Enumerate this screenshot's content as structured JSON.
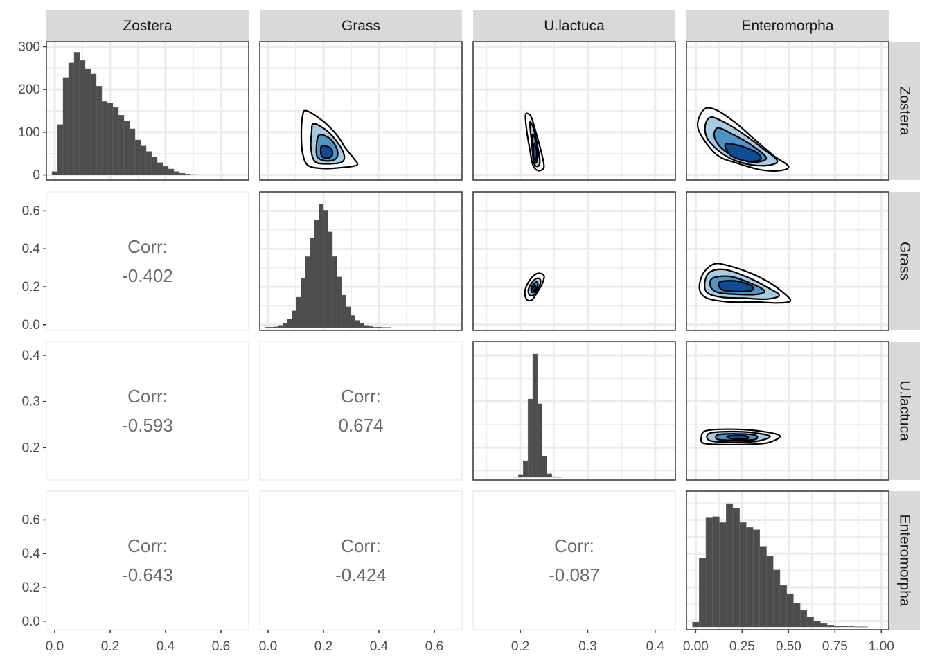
{
  "chart_data": {
    "type": "scatterplot-matrix",
    "variables": [
      "Zostera",
      "Grass",
      "U.lactuca",
      "Enteromorpha"
    ],
    "x_axis": [
      {
        "range": [
          -0.03,
          0.7
        ],
        "ticks": [
          0.0,
          0.2,
          0.4,
          0.6
        ],
        "tick_labels": [
          "0.0",
          "0.2",
          "0.4",
          "0.6"
        ]
      },
      {
        "range": [
          -0.03,
          0.7
        ],
        "ticks": [
          0.0,
          0.2,
          0.4,
          0.6
        ],
        "tick_labels": [
          "0.0",
          "0.2",
          "0.4",
          "0.6"
        ]
      },
      {
        "range": [
          0.13,
          0.43
        ],
        "ticks": [
          0.2,
          0.3,
          0.4
        ],
        "tick_labels": [
          "0.2",
          "0.3",
          "0.4"
        ]
      },
      {
        "range": [
          -0.05,
          1.04
        ],
        "ticks": [
          0.0,
          0.25,
          0.5,
          0.75,
          1.0
        ],
        "tick_labels": [
          "0.00",
          "0.25",
          "0.50",
          "0.75",
          "1.00"
        ]
      }
    ],
    "y_axis": [
      {
        "range": [
          -12,
          312
        ],
        "ticks": [
          0,
          100,
          200,
          300
        ],
        "tick_labels": [
          "0",
          "100",
          "200",
          "300"
        ]
      },
      {
        "range": [
          -0.03,
          0.7
        ],
        "ticks": [
          0.0,
          0.2,
          0.4,
          0.6
        ],
        "tick_labels": [
          "0.0",
          "0.2",
          "0.4",
          "0.6"
        ]
      },
      {
        "range": [
          0.13,
          0.43
        ],
        "ticks": [
          0.2,
          0.3,
          0.4
        ],
        "tick_labels": [
          "0.2",
          "0.3",
          "0.4"
        ]
      },
      {
        "range": [
          -0.05,
          0.77
        ],
        "ticks": [
          0.0,
          0.2,
          0.4,
          0.6
        ],
        "tick_labels": [
          "0.0",
          "0.2",
          "0.4",
          "0.6"
        ]
      }
    ],
    "histograms": [
      {
        "variable": "Zostera",
        "bin_width": 0.02,
        "x_start": -0.01,
        "counts": [
          8,
          118,
          228,
          262,
          287,
          268,
          248,
          236,
          208,
          172,
          168,
          158,
          140,
          126,
          108,
          82,
          68,
          55,
          42,
          29,
          20,
          14,
          8,
          4,
          2,
          1,
          0,
          0,
          0,
          0
        ]
      },
      {
        "variable": "Grass",
        "bin_width": 0.0163,
        "x_start": -0.012,
        "counts": [
          2,
          2,
          3,
          8,
          16,
          30,
          58,
          105,
          170,
          245,
          310,
          372,
          425,
          405,
          330,
          245,
          175,
          112,
          72,
          42,
          25,
          15,
          8,
          4,
          2,
          2,
          1,
          1,
          0,
          0
        ],
        "y_max_scale": 425
      },
      {
        "variable": "U.lactuca",
        "bin_width": 0.0071,
        "x_start": 0.19,
        "counts": [
          2,
          12,
          70,
          330,
          520,
          310,
          90,
          15,
          3,
          1,
          0,
          0,
          0,
          0,
          0,
          0,
          0,
          0,
          0,
          0,
          0,
          0,
          0,
          0,
          0,
          0,
          0,
          0,
          0,
          0
        ],
        "y_max_scale": 520
      },
      {
        "variable": "Enteromorpha",
        "bin_width": 0.0363,
        "x_start": -0.018,
        "counts": [
          20,
          290,
          460,
          465,
          440,
          520,
          500,
          440,
          420,
          410,
          340,
          300,
          240,
          175,
          140,
          100,
          70,
          42,
          25,
          14,
          8,
          4,
          3,
          2,
          1,
          1,
          0,
          0,
          0,
          0
        ],
        "y_max_scale": 520
      }
    ],
    "correlations": [
      {
        "row": "Grass",
        "col": "Zostera",
        "label": "Corr:",
        "value": "-0.402"
      },
      {
        "row": "U.lactuca",
        "col": "Zostera",
        "label": "Corr:",
        "value": "-0.593"
      },
      {
        "row": "U.lactuca",
        "col": "Grass",
        "label": "Corr:",
        "value": "0.674"
      },
      {
        "row": "Enteromorpha",
        "col": "Zostera",
        "label": "Corr:",
        "value": "-0.643"
      },
      {
        "row": "Enteromorpha",
        "col": "Grass",
        "label": "Corr:",
        "value": "-0.424"
      },
      {
        "row": "Enteromorpha",
        "col": "U.lactuca",
        "label": "Corr:",
        "value": "-0.087"
      }
    ],
    "density_contours": [
      {
        "row": "Zostera",
        "col": "Grass",
        "x_var": "Grass",
        "y_var": "Zostera",
        "polygons": [
          [
            [
              0.14,
              150
            ],
            [
              0.2,
              125
            ],
            [
              0.25,
              92
            ],
            [
              0.28,
              62
            ],
            [
              0.31,
              38
            ],
            [
              0.32,
              23
            ],
            [
              0.26,
              17
            ],
            [
              0.2,
              15
            ],
            [
              0.145,
              22
            ],
            [
              0.125,
              50
            ],
            [
              0.12,
              95
            ],
            [
              0.125,
              140
            ]
          ],
          [
            [
              0.165,
              120
            ],
            [
              0.215,
              102
            ],
            [
              0.255,
              72
            ],
            [
              0.275,
              45
            ],
            [
              0.265,
              30
            ],
            [
              0.215,
              26
            ],
            [
              0.17,
              31
            ],
            [
              0.155,
              60
            ],
            [
              0.157,
              98
            ]
          ],
          [
            [
              0.185,
              94
            ],
            [
              0.225,
              84
            ],
            [
              0.25,
              58
            ],
            [
              0.245,
              38
            ],
            [
              0.21,
              33
            ],
            [
              0.178,
              42
            ],
            [
              0.175,
              70
            ]
          ],
          [
            [
              0.195,
              68
            ],
            [
              0.225,
              63
            ],
            [
              0.232,
              47
            ],
            [
              0.215,
              39
            ],
            [
              0.195,
              43
            ],
            [
              0.19,
              56
            ]
          ]
        ]
      },
      {
        "row": "Zostera",
        "col": "U.lactuca",
        "x_var": "U.lactuca",
        "y_var": "Zostera",
        "polygons": [
          [
            [
              0.208,
              142
            ],
            [
              0.216,
              136
            ],
            [
              0.224,
              95
            ],
            [
              0.232,
              48
            ],
            [
              0.235,
              18
            ],
            [
              0.227,
              10
            ],
            [
              0.219,
              22
            ],
            [
              0.214,
              60
            ],
            [
              0.209,
              110
            ]
          ],
          [
            [
              0.214,
              122
            ],
            [
              0.219,
              112
            ],
            [
              0.225,
              72
            ],
            [
              0.229,
              33
            ],
            [
              0.226,
              20
            ],
            [
              0.22,
              29
            ],
            [
              0.217,
              75
            ]
          ],
          [
            [
              0.218,
              95
            ],
            [
              0.223,
              80
            ],
            [
              0.226,
              45
            ],
            [
              0.223,
              28
            ],
            [
              0.219,
              40
            ],
            [
              0.218,
              70
            ]
          ],
          [
            [
              0.22,
              72
            ],
            [
              0.224,
              60
            ],
            [
              0.224,
              40
            ],
            [
              0.221,
              35
            ],
            [
              0.219,
              52
            ]
          ]
        ]
      },
      {
        "row": "Zostera",
        "col": "Enteromorpha",
        "x_var": "Enteromorpha",
        "y_var": "Zostera",
        "polygons": [
          [
            [
              0.05,
              155
            ],
            [
              0.12,
              150
            ],
            [
              0.22,
              120
            ],
            [
              0.32,
              82
            ],
            [
              0.42,
              45
            ],
            [
              0.5,
              20
            ],
            [
              0.45,
              10
            ],
            [
              0.35,
              12
            ],
            [
              0.22,
              28
            ],
            [
              0.12,
              45
            ],
            [
              0.04,
              85
            ],
            [
              0.01,
              120
            ]
          ],
          [
            [
              0.08,
              135
            ],
            [
              0.16,
              122
            ],
            [
              0.26,
              95
            ],
            [
              0.36,
              62
            ],
            [
              0.44,
              33
            ],
            [
              0.38,
              22
            ],
            [
              0.27,
              26
            ],
            [
              0.16,
              45
            ],
            [
              0.07,
              80
            ],
            [
              0.05,
              112
            ]
          ],
          [
            [
              0.12,
              110
            ],
            [
              0.2,
              95
            ],
            [
              0.3,
              70
            ],
            [
              0.38,
              40
            ],
            [
              0.32,
              30
            ],
            [
              0.23,
              38
            ],
            [
              0.14,
              62
            ],
            [
              0.1,
              90
            ]
          ],
          [
            [
              0.16,
              72
            ],
            [
              0.24,
              68
            ],
            [
              0.33,
              52
            ],
            [
              0.35,
              36
            ],
            [
              0.28,
              32
            ],
            [
              0.19,
              45
            ]
          ]
        ]
      },
      {
        "row": "Grass",
        "col": "U.lactuca",
        "x_var": "U.lactuca",
        "y_var": "Grass",
        "polygons": [
          [
            [
              0.225,
              0.27
            ],
            [
              0.235,
              0.26
            ],
            [
              0.233,
              0.22
            ],
            [
              0.225,
              0.17
            ],
            [
              0.217,
              0.13
            ],
            [
              0.209,
              0.135
            ],
            [
              0.207,
              0.18
            ],
            [
              0.214,
              0.235
            ]
          ],
          [
            [
              0.225,
              0.245
            ],
            [
              0.23,
              0.235
            ],
            [
              0.228,
              0.2
            ],
            [
              0.221,
              0.16
            ],
            [
              0.214,
              0.155
            ],
            [
              0.212,
              0.185
            ],
            [
              0.218,
              0.225
            ]
          ],
          [
            [
              0.224,
              0.225
            ],
            [
              0.226,
              0.21
            ],
            [
              0.223,
              0.18
            ],
            [
              0.218,
              0.17
            ],
            [
              0.216,
              0.19
            ],
            [
              0.219,
              0.21
            ]
          ],
          [
            [
              0.222,
              0.205
            ],
            [
              0.223,
              0.195
            ],
            [
              0.22,
              0.18
            ],
            [
              0.218,
              0.19
            ]
          ]
        ]
      },
      {
        "row": "Grass",
        "col": "Enteromorpha",
        "x_var": "Enteromorpha",
        "y_var": "Grass",
        "polygons": [
          [
            [
              0.1,
              0.32
            ],
            [
              0.18,
              0.31
            ],
            [
              0.3,
              0.27
            ],
            [
              0.4,
              0.22
            ],
            [
              0.47,
              0.17
            ],
            [
              0.51,
              0.125
            ],
            [
              0.44,
              0.115
            ],
            [
              0.32,
              0.12
            ],
            [
              0.18,
              0.12
            ],
            [
              0.06,
              0.14
            ],
            [
              0.02,
              0.19
            ],
            [
              0.04,
              0.27
            ]
          ],
          [
            [
              0.08,
              0.28
            ],
            [
              0.16,
              0.29
            ],
            [
              0.28,
              0.25
            ],
            [
              0.38,
              0.2
            ],
            [
              0.45,
              0.155
            ],
            [
              0.38,
              0.135
            ],
            [
              0.26,
              0.14
            ],
            [
              0.14,
              0.145
            ],
            [
              0.06,
              0.17
            ],
            [
              0.05,
              0.23
            ]
          ],
          [
            [
              0.09,
              0.245
            ],
            [
              0.18,
              0.255
            ],
            [
              0.28,
              0.225
            ],
            [
              0.37,
              0.18
            ],
            [
              0.33,
              0.16
            ],
            [
              0.22,
              0.16
            ],
            [
              0.12,
              0.17
            ],
            [
              0.08,
              0.2
            ]
          ],
          [
            [
              0.13,
              0.225
            ],
            [
              0.22,
              0.23
            ],
            [
              0.3,
              0.205
            ],
            [
              0.3,
              0.18
            ],
            [
              0.22,
              0.175
            ],
            [
              0.14,
              0.185
            ]
          ]
        ]
      },
      {
        "row": "U.lactuca",
        "col": "Enteromorpha",
        "x_var": "Enteromorpha",
        "y_var": "U.lactuca",
        "polygons": [
          [
            [
              0.05,
              0.236
            ],
            [
              0.15,
              0.24
            ],
            [
              0.3,
              0.238
            ],
            [
              0.43,
              0.23
            ],
            [
              0.45,
              0.222
            ],
            [
              0.38,
              0.21
            ],
            [
              0.25,
              0.207
            ],
            [
              0.12,
              0.207
            ],
            [
              0.04,
              0.21
            ],
            [
              0.03,
              0.222
            ]
          ],
          [
            [
              0.08,
              0.232
            ],
            [
              0.18,
              0.235
            ],
            [
              0.3,
              0.233
            ],
            [
              0.4,
              0.225
            ],
            [
              0.33,
              0.214
            ],
            [
              0.2,
              0.212
            ],
            [
              0.09,
              0.214
            ],
            [
              0.06,
              0.222
            ]
          ],
          [
            [
              0.12,
              0.228
            ],
            [
              0.22,
              0.23
            ],
            [
              0.32,
              0.227
            ],
            [
              0.32,
              0.218
            ],
            [
              0.22,
              0.216
            ],
            [
              0.12,
              0.218
            ]
          ],
          [
            [
              0.17,
              0.225
            ],
            [
              0.26,
              0.226
            ],
            [
              0.28,
              0.22
            ],
            [
              0.2,
              0.219
            ]
          ]
        ]
      }
    ],
    "contour_fill_colors": [
      "#ffffff",
      "#a9cbe2",
      "#4f93c5",
      "#0d4d94"
    ],
    "contour_stroke_color": "#000000",
    "histogram_fill_color": "#4d4d4d",
    "strip_background": "#d9d9d9",
    "panel_border_color": "#333333",
    "grid_color": "#ebebeb",
    "corr_text_color": "#6b6b6b"
  }
}
